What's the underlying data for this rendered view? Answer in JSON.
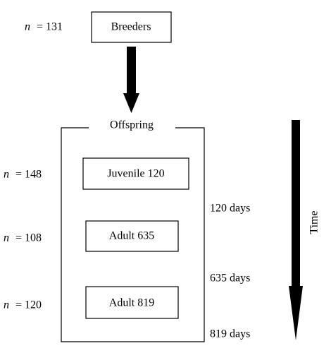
{
  "breeders": {
    "label": "Breeders",
    "n": {
      "symbol": "n",
      "text": "= 131"
    }
  },
  "offspring": {
    "label": "Offspring",
    "stages": [
      {
        "label": "Juvenile 120",
        "n": {
          "symbol": "n",
          "text": "= 148"
        }
      },
      {
        "label": "Adult 635",
        "n": {
          "symbol": "n",
          "text": "= 108"
        }
      },
      {
        "label": "Adult 819",
        "n": {
          "symbol": "n",
          "text": "= 120"
        }
      }
    ]
  },
  "days": [
    "120 days",
    "635 days",
    "819 days"
  ],
  "time_label": "Time"
}
